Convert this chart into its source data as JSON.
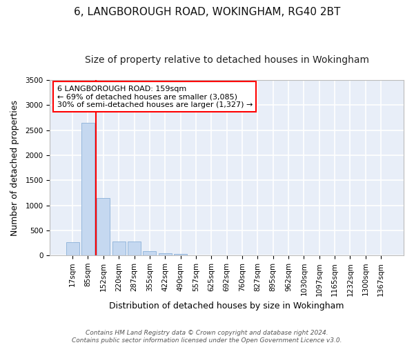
{
  "title_line1": "6, LANGBOROUGH ROAD, WOKINGHAM, RG40 2BT",
  "title_line2": "Size of property relative to detached houses in Wokingham",
  "xlabel": "Distribution of detached houses by size in Wokingham",
  "ylabel": "Number of detached properties",
  "bar_color": "#c5d8f0",
  "bar_edge_color": "#8ab0d8",
  "background_color": "#e8eef8",
  "grid_color": "#ffffff",
  "categories": [
    "17sqm",
    "85sqm",
    "152sqm",
    "220sqm",
    "287sqm",
    "355sqm",
    "422sqm",
    "490sqm",
    "557sqm",
    "625sqm",
    "692sqm",
    "760sqm",
    "827sqm",
    "895sqm",
    "962sqm",
    "1030sqm",
    "1097sqm",
    "1165sqm",
    "1232sqm",
    "1300sqm",
    "1367sqm"
  ],
  "values": [
    270,
    2650,
    1140,
    280,
    280,
    90,
    50,
    35,
    0,
    0,
    0,
    0,
    0,
    0,
    0,
    0,
    0,
    0,
    0,
    0,
    0
  ],
  "ylim": [
    0,
    3500
  ],
  "yticks": [
    0,
    500,
    1000,
    1500,
    2000,
    2500,
    3000,
    3500
  ],
  "annotation_box_text": "6 LANGBOROUGH ROAD: 159sqm\n← 69% of detached houses are smaller (3,085)\n30% of semi-detached houses are larger (1,327) →",
  "vline_x": 2.0,
  "footnote_line1": "Contains HM Land Registry data © Crown copyright and database right 2024.",
  "footnote_line2": "Contains public sector information licensed under the Open Government Licence v3.0.",
  "title_fontsize": 11,
  "subtitle_fontsize": 10,
  "axis_label_fontsize": 9,
  "tick_fontsize": 7.5,
  "annotation_fontsize": 8,
  "footnote_fontsize": 6.5
}
